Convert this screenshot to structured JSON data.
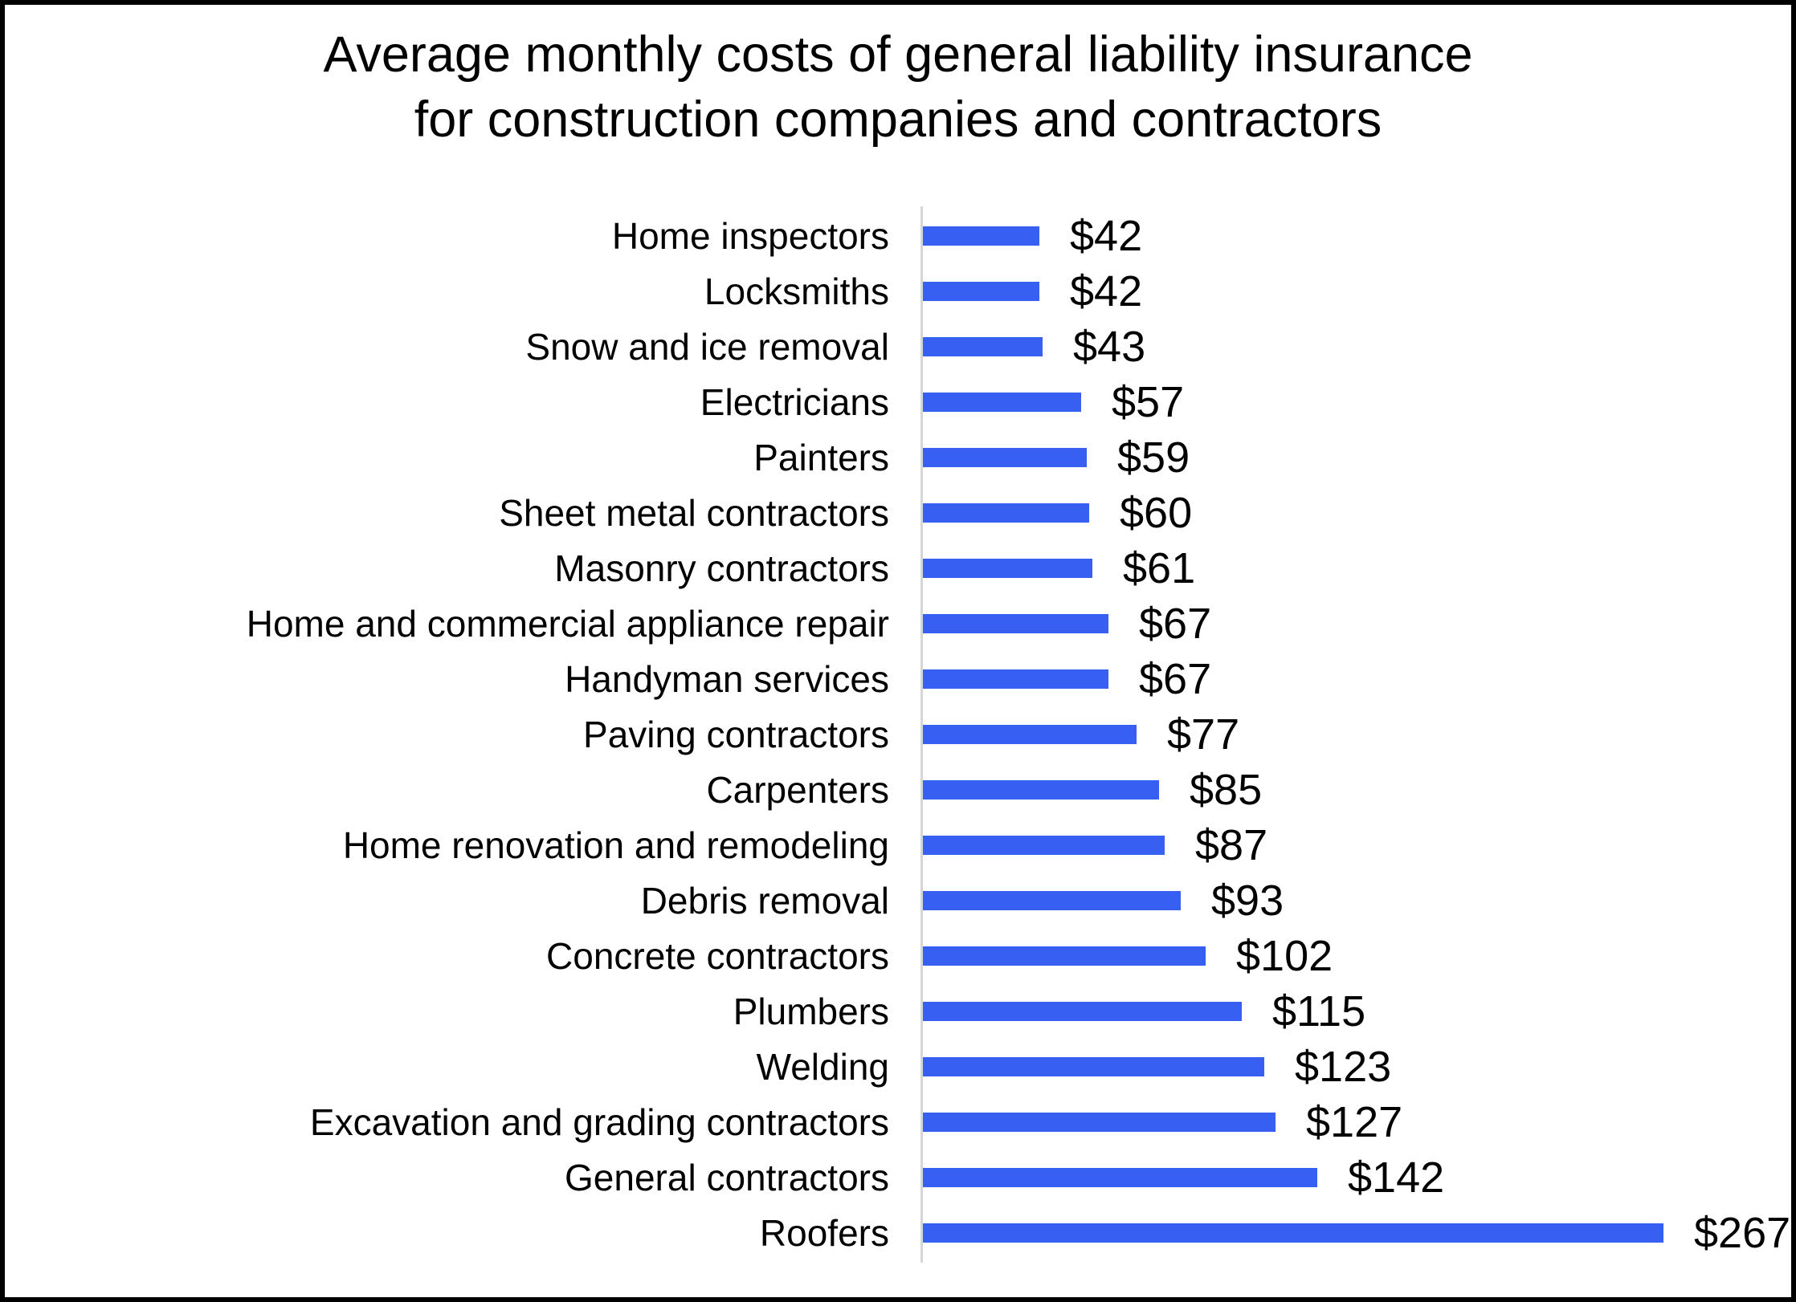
{
  "title": {
    "line1": "Average monthly costs of general liability insurance",
    "line2": "for construction companies and contractors"
  },
  "chart_data": {
    "type": "bar",
    "orientation": "horizontal",
    "title": "Average monthly costs of general liability insurance for construction companies and contractors",
    "xlabel": "",
    "ylabel": "",
    "categories": [
      "Home inspectors",
      "Locksmiths",
      "Snow and ice removal",
      "Electricians",
      "Painters",
      "Sheet metal contractors",
      "Masonry contractors",
      "Home and commercial appliance repair",
      "Handyman services",
      "Paving contractors",
      "Carpenters",
      "Home renovation and remodeling",
      "Debris removal",
      "Concrete contractors",
      "Plumbers",
      "Welding",
      "Excavation and grading contractors",
      "General contractors",
      "Roofers"
    ],
    "values": [
      42,
      42,
      43,
      57,
      59,
      60,
      61,
      67,
      67,
      77,
      85,
      87,
      93,
      102,
      115,
      123,
      127,
      142,
      267
    ],
    "value_labels": [
      "$42",
      "$42",
      "$43",
      "$57",
      "$59",
      "$60",
      "$61",
      "$67",
      "$67",
      "$77",
      "$85",
      "$87",
      "$93",
      "$102",
      "$115",
      "$123",
      "$127",
      "$142",
      "$267"
    ],
    "xlim": [
      0,
      300
    ],
    "grid": false,
    "legend": false,
    "bar_color": "#3760F3",
    "axis_color": "#D6D6D6",
    "text_color": "#000000",
    "background_color": "#FFFFFF",
    "border_color": "#000000"
  }
}
